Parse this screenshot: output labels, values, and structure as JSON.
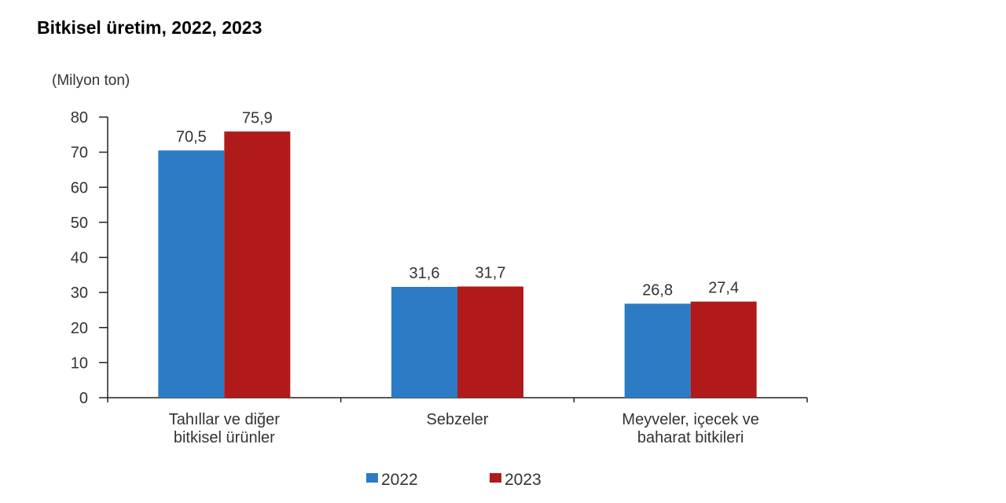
{
  "chart_data": {
    "type": "bar",
    "title": "Bitkisel üretim, 2022, 2023",
    "ylabel": "(Milyon ton)",
    "xlabel": "",
    "ylim": [
      0,
      80
    ],
    "yticks": [
      0,
      10,
      20,
      30,
      40,
      50,
      60,
      70,
      80
    ],
    "grid": false,
    "legend_position": "bottom",
    "categories": [
      [
        "Tahıllar ve diğer",
        "bitkisel ürünler"
      ],
      [
        "Sebzeler"
      ],
      [
        "Meyveler, içecek ve",
        "baharat  bitkileri"
      ]
    ],
    "series": [
      {
        "name": "2022",
        "color": "#2b7cc4",
        "values": [
          70.5,
          31.6,
          26.8
        ],
        "labels": [
          "70,5",
          "31,6",
          "26,8"
        ]
      },
      {
        "name": "2023",
        "color": "#b01a1a",
        "values": [
          75.9,
          31.7,
          27.4
        ],
        "labels": [
          "75,9",
          "31,7",
          "27,4"
        ]
      }
    ]
  }
}
